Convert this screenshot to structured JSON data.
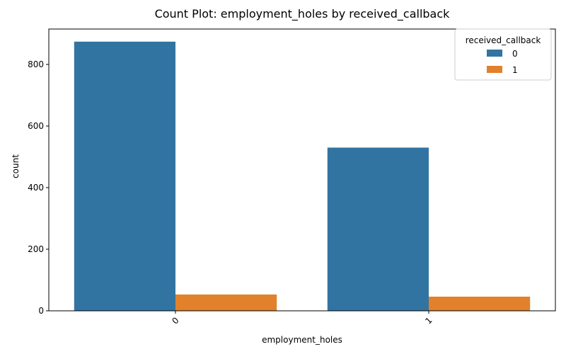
{
  "chart_data": {
    "type": "bar",
    "title": "Count Plot: employment_holes by received_callback",
    "xlabel": "employment_holes",
    "ylabel": "count",
    "categories": [
      "0",
      "1"
    ],
    "series": [
      {
        "name": "0",
        "values": [
          874,
          530
        ],
        "color": "#3274a1"
      },
      {
        "name": "1",
        "values": [
          53,
          46
        ],
        "color": "#e1812c"
      }
    ],
    "ylim": [
      0,
      915
    ],
    "yticks": [
      0,
      200,
      400,
      600,
      800
    ],
    "legend": {
      "title": "received_callback",
      "placement": "top-right"
    },
    "grid": false
  }
}
